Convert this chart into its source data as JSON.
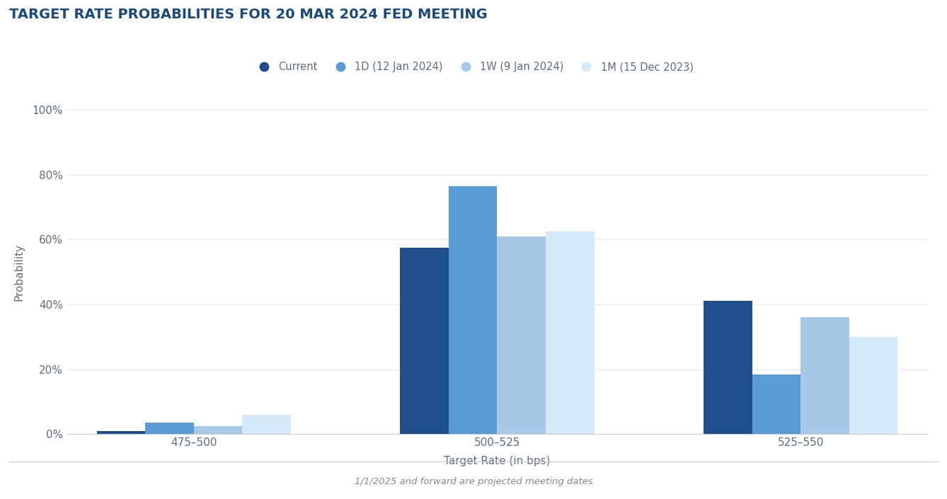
{
  "title": "TARGET RATE PROBABILITIES FOR 20 MAR 2024 FED MEETING",
  "xlabel": "Target Rate (in bps)",
  "ylabel": "Probability",
  "footer": "1/1/2025 and forward are projected meeting dates",
  "categories": [
    "475–500",
    "500–525",
    "525–550"
  ],
  "series": [
    {
      "label": "Current",
      "color": "#1f4e8c",
      "values": [
        1.0,
        57.5,
        41.0
      ]
    },
    {
      "label": "1D (12 Jan 2024)",
      "color": "#5b9bd5",
      "values": [
        3.5,
        76.5,
        18.5
      ]
    },
    {
      "label": "1W (9 Jan 2024)",
      "color": "#a8c8e8",
      "values": [
        2.5,
        61.0,
        36.0
      ]
    },
    {
      "label": "1M (15 Dec 2023)",
      "color": "#d6e9f8",
      "values": [
        6.0,
        62.5,
        30.0
      ]
    }
  ],
  "ylim": [
    0,
    100
  ],
  "yticks": [
    0,
    20,
    40,
    60,
    80,
    100
  ],
  "ytick_labels": [
    "0%",
    "20%",
    "40%",
    "60%",
    "80%",
    "100%"
  ],
  "background_color": "#ffffff",
  "grid_color": "#e8e8e8",
  "title_color": "#1a4a7a",
  "title_fontsize": 14,
  "axis_label_color": "#5d6d7e",
  "tick_label_color": "#5d6d7e",
  "legend_label_color": "#5d6d7e",
  "footer_color": "#888888",
  "bar_width": 0.16,
  "group_centers": [
    0.0,
    1.0,
    2.0
  ]
}
